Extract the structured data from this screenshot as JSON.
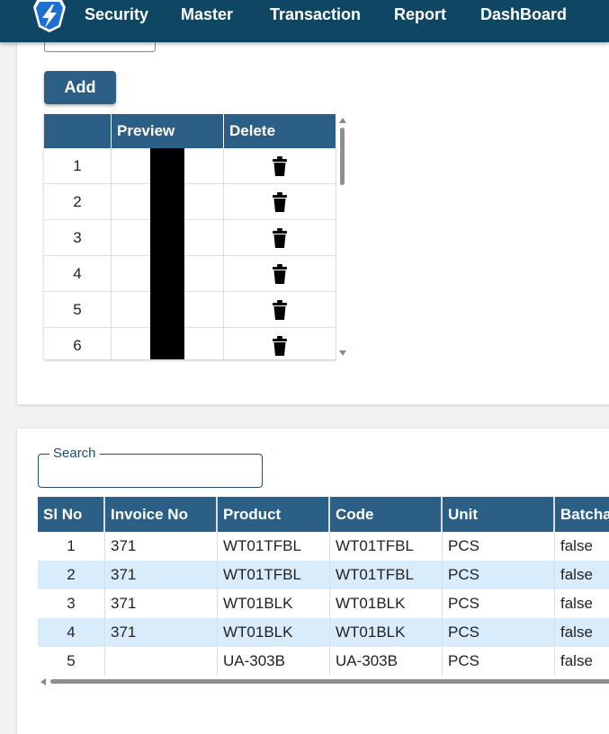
{
  "nav": {
    "items": [
      {
        "label": "Security"
      },
      {
        "label": "Master"
      },
      {
        "label": "Transaction"
      },
      {
        "label": "Report"
      },
      {
        "label": "DashBoard"
      }
    ],
    "logo_icon": "app-logo-icon",
    "brand_color": "#0e4663"
  },
  "upload": {
    "add_label": "Add",
    "grid": {
      "headers": [
        "",
        "Preview",
        "Delete"
      ],
      "rows": [
        {
          "no": "1"
        },
        {
          "no": "2"
        },
        {
          "no": "3"
        },
        {
          "no": "4"
        },
        {
          "no": "5"
        },
        {
          "no": "6"
        }
      ],
      "delete_icon": "trash-icon"
    }
  },
  "search": {
    "label": "Search",
    "value": ""
  },
  "table": {
    "headers": [
      "Sl No",
      "Invoice No",
      "Product",
      "Code",
      "Unit",
      "Batcha"
    ],
    "rows": [
      [
        "1",
        "371",
        "WT01TFBL",
        "WT01TFBL",
        "PCS",
        "false"
      ],
      [
        "2",
        "371",
        "WT01TFBL",
        "WT01TFBL",
        "PCS",
        "false"
      ],
      [
        "3",
        "371",
        "WT01BLK",
        "WT01BLK",
        "PCS",
        "false"
      ],
      [
        "4",
        "371",
        "WT01BLK",
        "WT01BLK",
        "PCS",
        "false"
      ],
      [
        "5",
        "",
        "UA-303B",
        "UA-303B",
        "PCS",
        "false"
      ]
    ],
    "header_color": "#2b5f86",
    "alt_row_color": "#d9ecfb"
  }
}
